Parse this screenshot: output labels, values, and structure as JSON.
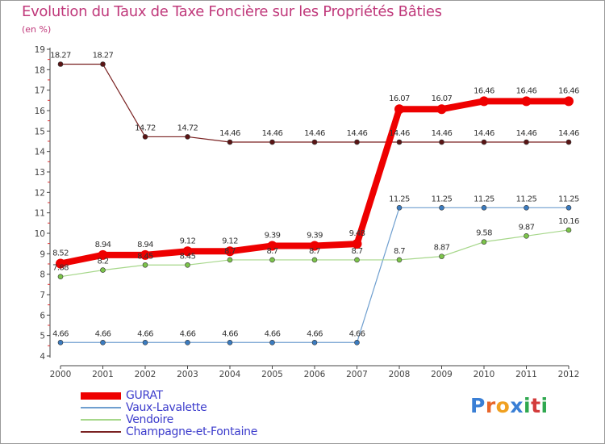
{
  "title": "Evolution du Taux de Taxe Foncière sur les Propriétés Bâties",
  "subtitle": "(en %)",
  "logo": {
    "letters": [
      "P",
      "r",
      "o",
      "x",
      "i",
      "t",
      "i"
    ],
    "colors": [
      "#3a7fd5",
      "#e8662a",
      "#f0a020",
      "#3a7fd5",
      "#2fa84f",
      "#d33c3c",
      "#2fa84f"
    ]
  },
  "chart_data": {
    "type": "line",
    "title": "Evolution du Taux de Taxe Foncière sur les Propriétés Bâties",
    "ylabel": "(en %)",
    "xlabel": "",
    "ylim": [
      4,
      19
    ],
    "yticks": [
      4,
      5,
      6,
      7,
      8,
      9,
      10,
      11,
      12,
      13,
      14,
      15,
      16,
      17,
      18,
      19
    ],
    "categories": [
      "2000",
      "2001",
      "2002",
      "2003",
      "2004",
      "2005",
      "2006",
      "2007",
      "2008",
      "2009",
      "2010",
      "2011",
      "2012"
    ],
    "series": [
      {
        "name": "Champagne-et-Fontaine",
        "color": "#7a2222",
        "marker": "#5a1414",
        "width": 1.2,
        "radius": 3,
        "values": [
          18.27,
          18.27,
          14.72,
          14.72,
          14.46,
          14.46,
          14.46,
          14.46,
          14.46,
          14.46,
          14.46,
          14.46,
          14.46
        ],
        "labels": [
          "18.27",
          "18.27",
          "14.72",
          "14.72",
          "14.46",
          "14.46",
          "14.46",
          "14.46",
          "14.46",
          "14.46",
          "14.46",
          "14.46",
          "14.46"
        ]
      },
      {
        "name": "Vaux-Lavalette",
        "color": "#6f9fcf",
        "marker": "#3b7bbf",
        "width": 1.2,
        "radius": 3,
        "values": [
          4.66,
          4.66,
          4.66,
          4.66,
          4.66,
          4.66,
          4.66,
          4.66,
          11.25,
          11.25,
          11.25,
          11.25,
          11.25
        ],
        "labels": [
          "4.66",
          "4.66",
          "4.66",
          "4.66",
          "4.66",
          "4.66",
          "4.66",
          "4.66",
          "11.25",
          "11.25",
          "11.25",
          "11.25",
          "11.25"
        ]
      },
      {
        "name": "Vendoire",
        "color": "#a6d78a",
        "marker": "#7cc44a",
        "width": 1.2,
        "radius": 3,
        "values": [
          7.88,
          8.2,
          8.45,
          8.45,
          8.7,
          8.7,
          8.7,
          8.7,
          8.7,
          8.87,
          9.58,
          9.87,
          10.16
        ],
        "labels": [
          "7.88",
          "8.2",
          "8.45",
          "8.45",
          "8.7",
          "8.7",
          "8.7",
          "8.7",
          "8.7",
          "8.87",
          "9.58",
          "9.87",
          "10.16"
        ]
      },
      {
        "name": "GURAT",
        "color": "#ee0000",
        "marker": "#ee0000",
        "width": 8,
        "radius": 6,
        "values": [
          8.52,
          8.94,
          8.94,
          9.12,
          9.12,
          9.39,
          9.39,
          9.48,
          16.07,
          16.07,
          16.46,
          16.46,
          16.46
        ],
        "labels": [
          "8.52",
          "8.94",
          "8.94",
          "9.12",
          "9.12",
          "9.39",
          "9.39",
          "9.48",
          "16.07",
          "16.07",
          "16.46",
          "16.46",
          "16.46"
        ]
      }
    ],
    "legend": [
      "GURAT",
      "Vaux-Lavalette",
      "Vendoire",
      "Champagne-et-Fontaine"
    ],
    "legend_position": "bottom-left",
    "grid": false
  }
}
